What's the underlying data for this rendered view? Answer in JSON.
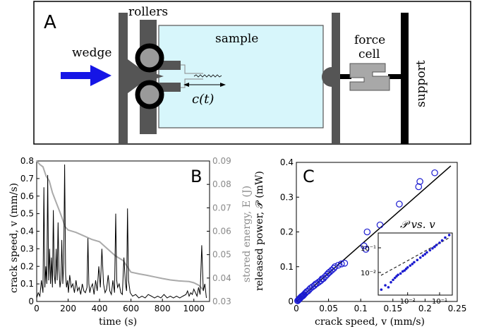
{
  "panelA": {
    "letter": "A",
    "labels": {
      "wedge": "wedge",
      "rollers": "rollers",
      "sample": "sample",
      "crack": "c(t)",
      "force": "force",
      "cell": "cell",
      "support": "support"
    },
    "colors": {
      "sample": "#d7f6fb",
      "arrow": "#1515e6",
      "part": "#555555",
      "roller_core": "#9a9a9a",
      "force_cell": "#a8a8a8"
    }
  },
  "chart_data": [
    {
      "type": "line",
      "panel": "B",
      "xlabel": "time (s)",
      "ylabel": "crack speed, v (mm/s)",
      "y2label": "stored energy, E (J)",
      "xlim": [
        0,
        1100
      ],
      "ylim": [
        0,
        0.8
      ],
      "y2lim": [
        0.03,
        0.09
      ],
      "xticks": [
        "0",
        "200",
        "400",
        "600",
        "800",
        "1000"
      ],
      "yticks": [
        "0",
        "0.1",
        "0.2",
        "0.3",
        "0.4",
        "0.5",
        "0.6",
        "0.7",
        "0.8"
      ],
      "y2ticks": [
        "0.03",
        "0.04",
        "0.05",
        "0.06",
        "0.07",
        "0.08",
        "0.09"
      ],
      "series": [
        {
          "color": "#000000",
          "x": [
            0,
            10,
            20,
            30,
            40,
            46,
            52,
            58,
            64,
            70,
            76,
            82,
            88,
            94,
            100,
            106,
            112,
            118,
            124,
            130,
            136,
            142,
            148,
            154,
            160,
            166,
            172,
            178,
            184,
            190,
            196,
            202,
            210,
            220,
            230,
            240,
            250,
            260,
            270,
            280,
            290,
            300,
            310,
            320,
            326,
            332,
            338,
            345,
            355,
            365,
            375,
            385,
            395,
            405,
            415,
            425,
            435,
            445,
            455,
            465,
            475,
            485,
            495,
            503,
            509,
            515,
            525,
            535,
            545,
            555,
            565,
            572,
            578,
            584,
            595,
            610,
            630,
            650,
            670,
            690,
            710,
            730,
            750,
            770,
            790,
            810,
            830,
            850,
            870,
            890,
            910,
            930,
            950,
            960,
            970,
            980,
            990,
            1000,
            1010,
            1020,
            1030,
            1040,
            1050,
            1060,
            1070,
            1080
          ],
          "y": [
            0.02,
            0.05,
            0.03,
            0.12,
            0.05,
            0.65,
            0.08,
            0.2,
            0.1,
            0.72,
            0.12,
            0.3,
            0.1,
            0.25,
            0.08,
            0.52,
            0.15,
            0.1,
            0.3,
            0.12,
            0.45,
            0.18,
            0.08,
            0.12,
            0.35,
            0.1,
            0.22,
            0.78,
            0.15,
            0.08,
            0.12,
            0.05,
            0.15,
            0.08,
            0.1,
            0.05,
            0.12,
            0.06,
            0.08,
            0.04,
            0.1,
            0.06,
            0.05,
            0.08,
            0.36,
            0.1,
            0.05,
            0.08,
            0.1,
            0.04,
            0.12,
            0.06,
            0.2,
            0.08,
            0.3,
            0.1,
            0.05,
            0.07,
            0.15,
            0.06,
            0.04,
            0.12,
            0.05,
            0.5,
            0.12,
            0.08,
            0.1,
            0.05,
            0.04,
            0.25,
            0.1,
            0.06,
            0.53,
            0.12,
            0.05,
            0.03,
            0.04,
            0.02,
            0.03,
            0.02,
            0.04,
            0.03,
            0.02,
            0.03,
            0.02,
            0.04,
            0.02,
            0.03,
            0.02,
            0.03,
            0.02,
            0.03,
            0.04,
            0.06,
            0.03,
            0.05,
            0.04,
            0.07,
            0.05,
            0.03,
            0.08,
            0.04,
            0.32,
            0.06,
            0.1,
            0.02
          ]
        },
        {
          "color": "#aaaaaa",
          "axis": "right",
          "x": [
            0,
            20,
            40,
            60,
            80,
            100,
            120,
            140,
            160,
            180,
            200,
            250,
            300,
            350,
            400,
            450,
            500,
            550,
            600,
            650,
            700,
            750,
            800,
            850,
            900,
            950,
            970,
            1000,
            1030,
            1060
          ],
          "y": [
            0.09,
            0.0885,
            0.0875,
            0.0835,
            0.0815,
            0.0765,
            0.073,
            0.0695,
            0.066,
            0.062,
            0.0605,
            0.0595,
            0.058,
            0.0565,
            0.0555,
            0.0525,
            0.0495,
            0.0475,
            0.0425,
            0.0418,
            0.0412,
            0.0405,
            0.0398,
            0.0392,
            0.0388,
            0.0386,
            0.0385,
            0.038,
            0.037,
            0.035
          ]
        }
      ]
    },
    {
      "type": "scatter",
      "panel": "C",
      "xlabel": "crack speed, v (mm/s)",
      "ylabel": "released power, 𝒫 (mW)",
      "xlim": [
        0,
        0.25
      ],
      "ylim": [
        0,
        0.4
      ],
      "xticks": [
        "0",
        "0.05",
        "0.1",
        "0.15",
        "0.2",
        "0.25"
      ],
      "yticks": [
        "0",
        "0.1",
        "0.2",
        "0.3",
        "0.4"
      ],
      "fit_line": {
        "x": [
          0,
          0.24
        ],
        "y": [
          0,
          0.39
        ]
      },
      "series": [
        {
          "color": "#1a1ad0",
          "x": [
            0.002,
            0.003,
            0.004,
            0.005,
            0.006,
            0.007,
            0.008,
            0.009,
            0.01,
            0.011,
            0.012,
            0.014,
            0.016,
            0.018,
            0.02,
            0.022,
            0.025,
            0.028,
            0.03,
            0.032,
            0.035,
            0.038,
            0.04,
            0.042,
            0.045,
            0.048,
            0.05,
            0.052,
            0.055,
            0.058,
            0.06,
            0.065,
            0.07,
            0.075,
            0.105,
            0.108,
            0.11,
            0.13,
            0.16,
            0.19,
            0.192,
            0.215
          ],
          "y": [
            0.002,
            0.004,
            0.006,
            0.008,
            0.01,
            0.012,
            0.014,
            0.015,
            0.016,
            0.018,
            0.02,
            0.024,
            0.028,
            0.03,
            0.034,
            0.038,
            0.042,
            0.046,
            0.05,
            0.052,
            0.056,
            0.06,
            0.065,
            0.066,
            0.072,
            0.078,
            0.082,
            0.085,
            0.09,
            0.095,
            0.1,
            0.104,
            0.108,
            0.11,
            0.16,
            0.15,
            0.2,
            0.22,
            0.28,
            0.33,
            0.345,
            0.37
          ]
        }
      ],
      "inset": {
        "title": "𝒫 vs. v",
        "scale": "log",
        "xticks": [
          "10⁻²",
          "10⁻¹"
        ],
        "yticks": [
          "10⁻¹",
          "10⁻²"
        ],
        "x": [
          0.0015,
          0.002,
          0.0025,
          0.003,
          0.0035,
          0.004,
          0.0045,
          0.005,
          0.006,
          0.007,
          0.008,
          0.009,
          0.01,
          0.012,
          0.014,
          0.016,
          0.02,
          0.025,
          0.03,
          0.035,
          0.04,
          0.05,
          0.06,
          0.07,
          0.08,
          0.1,
          0.12,
          0.15,
          0.2
        ],
        "y": [
          0.002,
          0.003,
          0.0025,
          0.004,
          0.005,
          0.006,
          0.007,
          0.008,
          0.009,
          0.011,
          0.012,
          0.014,
          0.016,
          0.019,
          0.022,
          0.026,
          0.032,
          0.04,
          0.048,
          0.055,
          0.065,
          0.08,
          0.095,
          0.11,
          0.13,
          0.16,
          0.2,
          0.26,
          0.33
        ]
      }
    }
  ]
}
